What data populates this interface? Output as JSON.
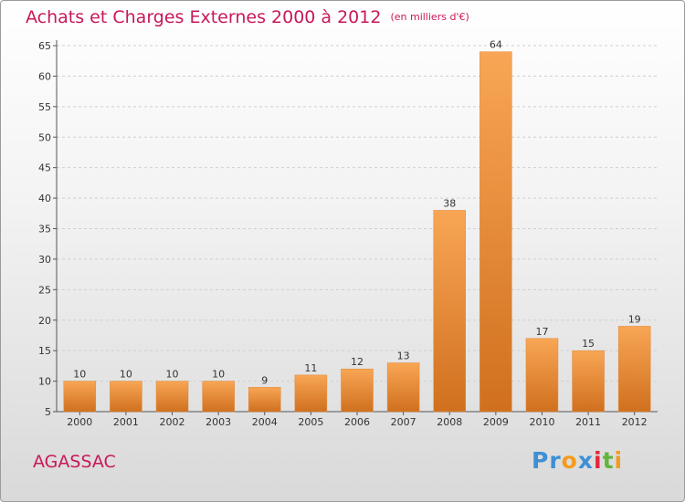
{
  "header": {
    "title": "Achats et Charges Externes 2000 à 2012",
    "unit": "(en milliers d'€)"
  },
  "commune": "AGASSAC",
  "logo": {
    "text": "Proxiti",
    "letters": [
      "Pr",
      "o",
      "x",
      "i",
      "t",
      "i"
    ]
  },
  "colors": {
    "title": "#c8185a",
    "bar_light": "#f8a655",
    "bar_dark": "#d0701e",
    "grid": "#cccccc"
  },
  "chart_data": {
    "type": "bar",
    "title": "Achats et Charges Externes 2000 à 2012",
    "subtitle": "(en milliers d'€)",
    "categories": [
      "2000",
      "2001",
      "2002",
      "2003",
      "2004",
      "2005",
      "2006",
      "2007",
      "2008",
      "2009",
      "2010",
      "2011",
      "2012"
    ],
    "values": [
      10,
      10,
      10,
      10,
      9,
      11,
      12,
      13,
      38,
      64,
      17,
      15,
      19
    ],
    "ylim": [
      5,
      65
    ],
    "yticks": [
      5,
      10,
      15,
      20,
      25,
      30,
      35,
      40,
      45,
      50,
      55,
      60,
      65
    ],
    "grid": true,
    "xlabel": "",
    "ylabel": ""
  }
}
